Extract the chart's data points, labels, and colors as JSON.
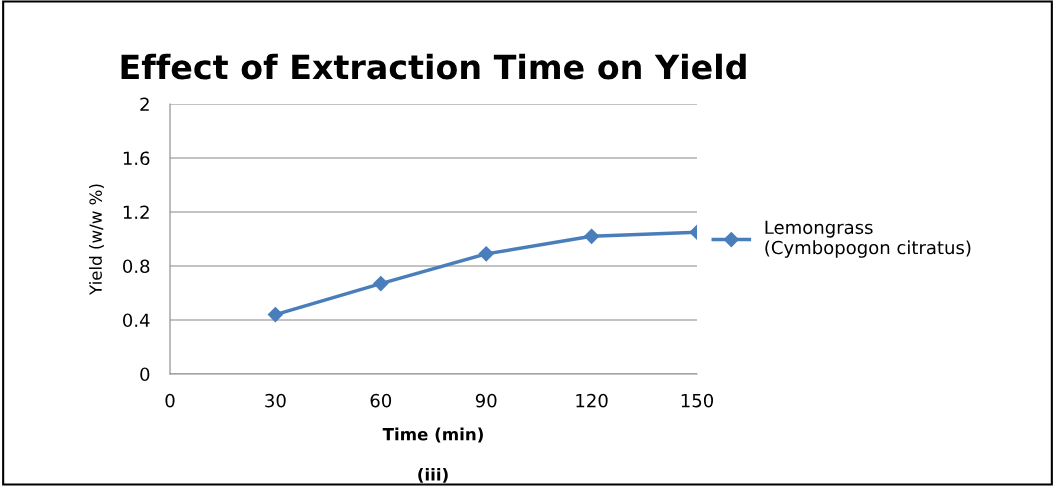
{
  "chart_data": {
    "type": "line",
    "title": "Effect of Extraction Time on Yield",
    "xlabel": "Time (min)",
    "ylabel": "Yield (w/w %)",
    "x": [
      30,
      60,
      90,
      120,
      150
    ],
    "series": [
      {
        "name": "Lemongrass\n(Cymbopogon citratus)",
        "color": "#4a7ebb",
        "values": [
          0.44,
          0.67,
          0.89,
          1.02,
          1.05
        ]
      }
    ],
    "xlim": [
      0,
      150
    ],
    "xticks": [
      0,
      30,
      60,
      90,
      120,
      150
    ],
    "ylim": [
      0,
      2
    ],
    "yticks": [
      0,
      0.4,
      0.8,
      1.2,
      1.6,
      2
    ],
    "grid": "y",
    "legend": "right",
    "marker": "diamond",
    "line_style": "solid",
    "annotations": [
      "(iii)"
    ]
  }
}
